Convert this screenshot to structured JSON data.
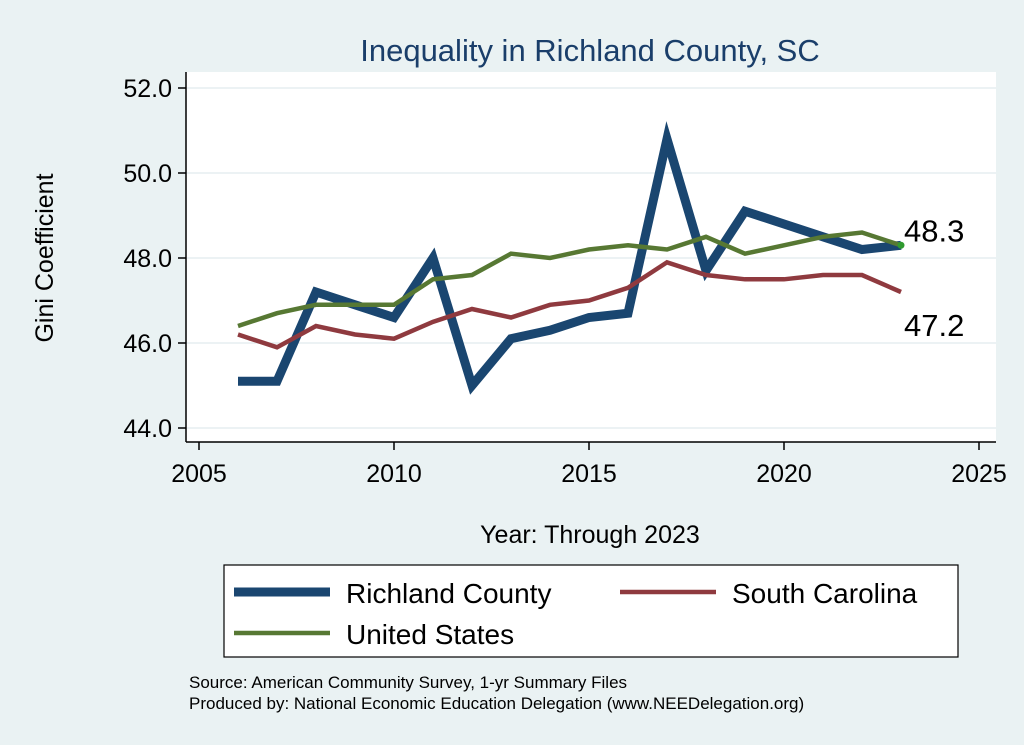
{
  "chart_data": {
    "type": "line",
    "title": "Inequality in Richland County, SC",
    "xlabel": "Year: Through 2023",
    "ylabel": "Gini Coefficient",
    "xlim": [
      2005,
      2025
    ],
    "ylim": [
      44.0,
      52.0
    ],
    "x_ticks": [
      2005,
      2010,
      2015,
      2020,
      2025
    ],
    "y_ticks": [
      44.0,
      46.0,
      48.0,
      50.0,
      52.0
    ],
    "x_tick_labels": [
      "2005",
      "2010",
      "2015",
      "2020",
      "2025"
    ],
    "y_tick_labels": [
      "44.0",
      "46.0",
      "48.0",
      "50.0",
      "52.0"
    ],
    "grid": true,
    "legend_position": "bottom",
    "x": [
      2006,
      2007,
      2008,
      2009,
      2010,
      2011,
      2012,
      2013,
      2014,
      2015,
      2016,
      2017,
      2018,
      2019,
      2020,
      2021,
      2022,
      2023
    ],
    "series": [
      {
        "name": "Richland County",
        "color": "#1a4670",
        "values": [
          45.1,
          45.1,
          47.2,
          46.9,
          46.6,
          48.0,
          45.0,
          46.1,
          46.3,
          46.6,
          46.7,
          50.8,
          47.7,
          49.1,
          48.8,
          48.5,
          48.2,
          48.3
        ]
      },
      {
        "name": "South Carolina",
        "color": "#8f3a3f",
        "values": [
          46.2,
          45.9,
          46.4,
          46.2,
          46.1,
          46.5,
          46.8,
          46.6,
          46.9,
          47.0,
          47.3,
          47.9,
          47.6,
          47.5,
          47.5,
          47.6,
          47.6,
          47.2
        ]
      },
      {
        "name": "United States",
        "color": "#577833",
        "values": [
          46.4,
          46.7,
          46.9,
          46.9,
          46.9,
          47.5,
          47.6,
          48.1,
          48.0,
          48.2,
          48.3,
          48.2,
          48.5,
          48.1,
          48.3,
          48.5,
          48.6,
          48.3
        ]
      }
    ],
    "end_labels": [
      {
        "text": "48.3",
        "value": 48.3,
        "series": "United States"
      },
      {
        "text": "47.2",
        "value": 47.2,
        "series": "South Carolina"
      }
    ],
    "source_lines": [
      "Source: American Community Survey, 1-yr Summary Files",
      "Produced by: National Economic Education Delegation (www.NEEDelegation.org)"
    ]
  }
}
